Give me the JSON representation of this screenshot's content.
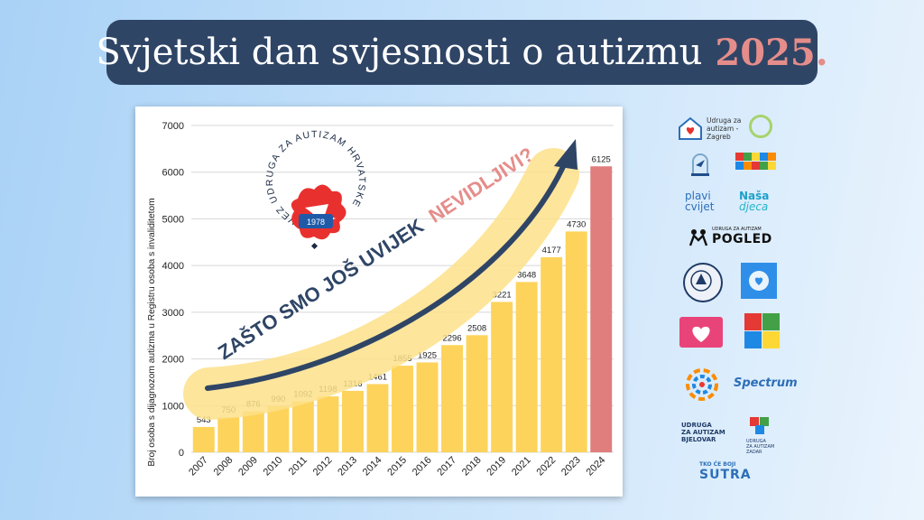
{
  "header": {
    "title_main": "Svjetski dan svjesnosti o autizmu",
    "title_year": "2025."
  },
  "chart_data": {
    "type": "bar",
    "ylabel": "Broj osoba s dijagnozom autizma u Registru osoba s invaliditetom",
    "categories": [
      "2007",
      "2008",
      "2009",
      "2010",
      "2011",
      "2012",
      "2013",
      "2014",
      "2015",
      "2016",
      "2017",
      "2018",
      "2019",
      "2021",
      "2022",
      "2023",
      "2024"
    ],
    "values": [
      543,
      750,
      876,
      990,
      1092,
      1198,
      1316,
      1461,
      1855,
      1925,
      2296,
      2508,
      3221,
      3648,
      4177,
      4730,
      6125
    ],
    "ylim": [
      0,
      7000
    ],
    "yticks": [
      0,
      1000,
      2000,
      3000,
      4000,
      5000,
      6000,
      7000
    ],
    "grid": true,
    "bar_color": "#fdd35b",
    "highlight_color": "#e07e7d",
    "highlight_index": 16,
    "annotation": {
      "text_main": "ZAŠTO SMO JOŠ UVIJEK",
      "text_highlight": "NEVIDLJIVI?",
      "color": "#2f4566",
      "highlight_text_color": "#e58d8a",
      "band_color": "#fde089"
    },
    "logo": {
      "ring_text": "SAVEZ UDRUGA ZA AUTIZAM HRVATSKE",
      "year": "1978"
    }
  },
  "logos": [
    {
      "name": "udruga-za-autizam-zagreb-logo",
      "lines": [
        "Udruga za",
        "autizam -",
        "Zagreb"
      ]
    },
    {
      "name": "plavi-cvijet-logo",
      "lines": [
        "plavi",
        "cvijet"
      ]
    },
    {
      "name": "nasa-djeca-logo",
      "lines": [
        "Naša",
        "djeca"
      ]
    },
    {
      "name": "pogled-logo",
      "small": "UDRUGA ZA AUTIZAM",
      "text": "POGLED"
    },
    {
      "name": "spectrum-logo",
      "text": "Spectrum"
    },
    {
      "name": "udruga-bjelovar-logo",
      "lines": [
        "UDRUGA",
        "ZA AUTIZAM",
        "BJELOVAR"
      ]
    },
    {
      "name": "udruga-zadar-logo",
      "lines": [
        "UDRUGA",
        "ZA AUTIZAM ZADAR"
      ]
    },
    {
      "name": "tko-ce-boji-sutra-logo",
      "top": "TKO ĆE BOJI",
      "text": "SUTRA"
    }
  ],
  "colors": {
    "title_bg": "#2f4566",
    "year_accent": "#e58d8a"
  }
}
